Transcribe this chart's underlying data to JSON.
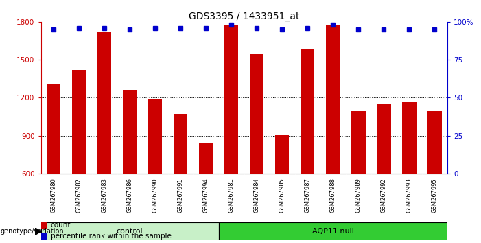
{
  "title": "GDS3395 / 1433951_at",
  "samples": [
    "GSM267980",
    "GSM267982",
    "GSM267983",
    "GSM267986",
    "GSM267990",
    "GSM267991",
    "GSM267994",
    "GSM267981",
    "GSM267984",
    "GSM267985",
    "GSM267987",
    "GSM267988",
    "GSM267989",
    "GSM267992",
    "GSM267993",
    "GSM267995"
  ],
  "counts": [
    1310,
    1420,
    1720,
    1260,
    1190,
    1070,
    840,
    1780,
    1550,
    910,
    1580,
    1780,
    1100,
    1150,
    1170,
    1100
  ],
  "percentile_ranks": [
    95,
    96,
    96,
    95,
    96,
    96,
    96,
    98,
    96,
    95,
    96,
    98,
    95,
    95,
    95,
    95
  ],
  "groups": [
    {
      "label": "control",
      "start": 0,
      "end": 7,
      "color": "#c8f0c8"
    },
    {
      "label": "AQP11 null",
      "start": 7,
      "end": 16,
      "color": "#33cc33"
    }
  ],
  "bar_color": "#cc0000",
  "dot_color": "#0000cc",
  "ylim_left": [
    600,
    1800
  ],
  "ylim_right": [
    0,
    100
  ],
  "yticks_left": [
    600,
    900,
    1200,
    1500,
    1800
  ],
  "yticks_right": [
    0,
    25,
    50,
    75,
    100
  ],
  "grid_values": [
    900,
    1200,
    1500
  ],
  "axis_color_left": "#cc0000",
  "axis_color_right": "#0000cc",
  "background_color": "#ffffff",
  "plot_bg_color": "#ffffff",
  "tick_bg_color": "#d8d8d8",
  "bar_width": 0.55,
  "legend_count_color": "#cc0000",
  "legend_pct_color": "#0000cc",
  "group_bar_color": "#000000",
  "arrow_label": "genotype/variation"
}
